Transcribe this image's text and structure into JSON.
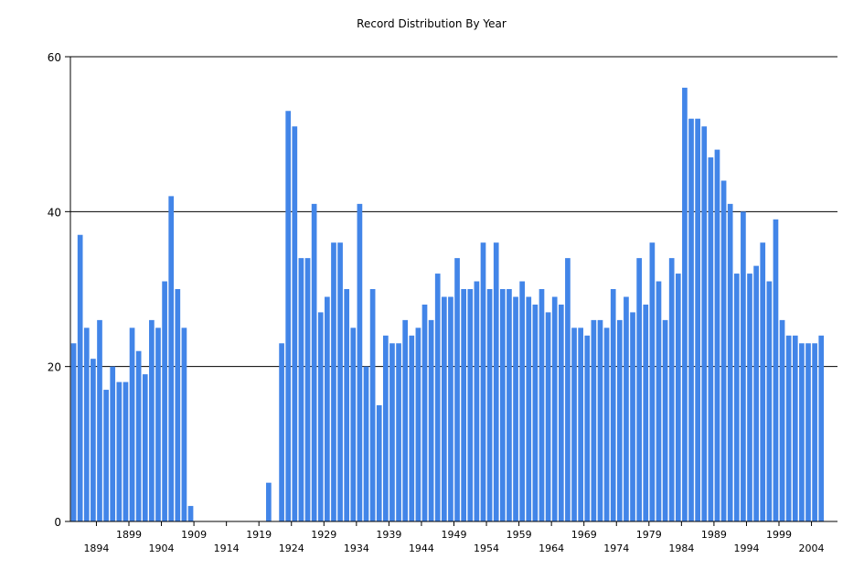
{
  "chart_data": {
    "type": "bar",
    "title": "Record Distribution By Year",
    "xlabel": "",
    "ylabel": "",
    "ylim": [
      0,
      60
    ],
    "yticks": [
      0,
      20,
      40,
      60
    ],
    "grid": "horizontal",
    "bar_color": "#4285e8",
    "x_start": 1891,
    "x_end": 2008,
    "x_tick_labels_row1": [
      "1899",
      "1909",
      "1919",
      "1929",
      "1939",
      "1949",
      "1959",
      "1969",
      "1979",
      "1989",
      "1999"
    ],
    "x_tick_labels_row2": [
      "1894",
      "1904",
      "1914",
      "1924",
      "1934",
      "1944",
      "1954",
      "1964",
      "1974",
      "1984",
      "1994",
      "2004"
    ],
    "years": [
      1891,
      1892,
      1893,
      1894,
      1895,
      1896,
      1897,
      1898,
      1899,
      1900,
      1901,
      1902,
      1903,
      1904,
      1905,
      1906,
      1907,
      1908,
      1909,
      1910,
      1911,
      1912,
      1913,
      1914,
      1915,
      1916,
      1917,
      1918,
      1919,
      1920,
      1921,
      1922,
      1923,
      1924,
      1925,
      1926,
      1927,
      1928,
      1929,
      1930,
      1931,
      1932,
      1933,
      1934,
      1935,
      1936,
      1937,
      1938,
      1939,
      1940,
      1941,
      1942,
      1943,
      1944,
      1945,
      1946,
      1947,
      1948,
      1949,
      1950,
      1951,
      1952,
      1953,
      1954,
      1955,
      1956,
      1957,
      1958,
      1959,
      1960,
      1961,
      1962,
      1963,
      1964,
      1965,
      1966,
      1967,
      1968,
      1969,
      1970,
      1971,
      1972,
      1973,
      1974,
      1975,
      1976,
      1977,
      1978,
      1979,
      1980,
      1981,
      1982,
      1983,
      1984,
      1985,
      1986,
      1987,
      1988,
      1989,
      1990,
      1991,
      1992,
      1993,
      1994,
      1995,
      1996,
      1997,
      1998,
      1999,
      2000,
      2001,
      2002,
      2003,
      2004,
      2005,
      2006,
      2007,
      2008
    ],
    "values": [
      23,
      37,
      25,
      21,
      26,
      17,
      20,
      18,
      18,
      25,
      22,
      19,
      26,
      25,
      31,
      42,
      30,
      25,
      2,
      0,
      0,
      0,
      0,
      0,
      0,
      0,
      0,
      0,
      0,
      0,
      5,
      0,
      23,
      53,
      51,
      34,
      34,
      41,
      27,
      29,
      36,
      36,
      30,
      25,
      41,
      20,
      30,
      15,
      24,
      23,
      23,
      26,
      24,
      25,
      28,
      26,
      32,
      29,
      29,
      34,
      30,
      30,
      31,
      36,
      30,
      36,
      30,
      30,
      29,
      31,
      29,
      28,
      30,
      27,
      29,
      28,
      34,
      25,
      25,
      24,
      26,
      26,
      25,
      30,
      26,
      29,
      27,
      34,
      28,
      36,
      31,
      26,
      34,
      32,
      56,
      52,
      52,
      51,
      47,
      48,
      44,
      41,
      32,
      40,
      32,
      33,
      36,
      31,
      39,
      26,
      24,
      24,
      23,
      23,
      23,
      24,
      0,
      0
    ]
  }
}
